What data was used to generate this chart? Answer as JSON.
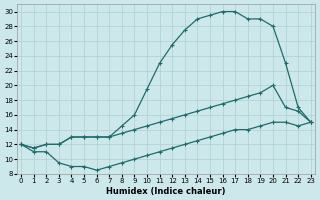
{
  "xlabel": "Humidex (Indice chaleur)",
  "background_color": "#cde8ea",
  "grid_color": "#aecfd2",
  "line_color": "#1f6b6b",
  "xlim_min": -0.3,
  "xlim_max": 23.3,
  "ylim_min": 8,
  "ylim_max": 31,
  "curve1_x": [
    0,
    1,
    2,
    3,
    4,
    5,
    6,
    7,
    8,
    9,
    10,
    11,
    12,
    13,
    14,
    15,
    16,
    17,
    18,
    19,
    20,
    21,
    22,
    23
  ],
  "curve1_y": [
    12,
    11,
    11,
    9.5,
    9,
    9,
    8.5,
    9,
    9.5,
    10,
    10.5,
    11,
    11.5,
    12,
    12.5,
    13,
    13.5,
    14,
    14,
    14.5,
    15,
    15,
    14.5,
    15
  ],
  "curve2_x": [
    0,
    1,
    2,
    3,
    4,
    5,
    6,
    7,
    8,
    9,
    10,
    11,
    12,
    13,
    14,
    15,
    16,
    17,
    18,
    19,
    20,
    21,
    22,
    23
  ],
  "curve2_y": [
    12,
    11.5,
    12,
    12,
    13,
    13,
    13,
    13,
    13.5,
    14,
    14.5,
    15,
    15.5,
    16,
    16.5,
    17,
    17.5,
    18,
    18.5,
    19,
    20,
    17,
    16.5,
    15
  ],
  "curve3_x": [
    0,
    1,
    2,
    3,
    4,
    5,
    6,
    7,
    8,
    9,
    10,
    11,
    12,
    13,
    14,
    15,
    16,
    17,
    18,
    19,
    20,
    21,
    22,
    23
  ],
  "curve3_y": [
    12,
    11.5,
    12,
    12,
    13,
    13,
    13,
    13,
    14.5,
    16,
    19.5,
    23,
    25.5,
    27.5,
    29,
    29.5,
    30,
    30,
    29,
    29,
    28,
    23,
    17,
    15
  ],
  "marker_size": 2.0,
  "linewidth": 0.9,
  "tick_fontsize": 5,
  "xlabel_fontsize": 6
}
